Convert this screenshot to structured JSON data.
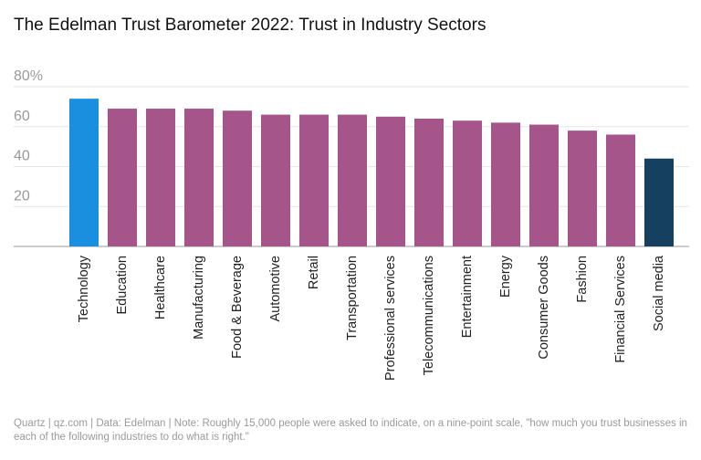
{
  "chart_data": {
    "type": "bar",
    "title": "The Edelman Trust Barometer 2022: Trust in Industry Sectors",
    "categories": [
      "Technology",
      "Education",
      "Healthcare",
      "Manufacturing",
      "Food & Beverage",
      "Automotive",
      "Retail",
      "Transportation",
      "Professional services",
      "Telecommunications",
      "Entertainment",
      "Energy",
      "Consumer Goods",
      "Fashion",
      "Financial Services",
      "Social media"
    ],
    "values": [
      74,
      69,
      69,
      69,
      68,
      66,
      66,
      66,
      65,
      64,
      63,
      62,
      61,
      58,
      56,
      44
    ],
    "colors": [
      "#1a8fe0",
      "#a5558a",
      "#a5558a",
      "#a5558a",
      "#a5558a",
      "#a5558a",
      "#a5558a",
      "#a5558a",
      "#a5558a",
      "#a5558a",
      "#a5558a",
      "#a5558a",
      "#a5558a",
      "#a5558a",
      "#a5558a",
      "#16405f"
    ],
    "ylim": [
      0,
      80
    ],
    "yticks": [
      20,
      40,
      60,
      {
        "value": 80,
        "label": "80%"
      }
    ],
    "grid": true,
    "source": "Quartz | qz.com | Data: Edelman | Note: Roughly 15,000 people were asked to indicate, on a nine-point scale, \"how much you trust businesses in each of the following industries to do what is right.\""
  }
}
